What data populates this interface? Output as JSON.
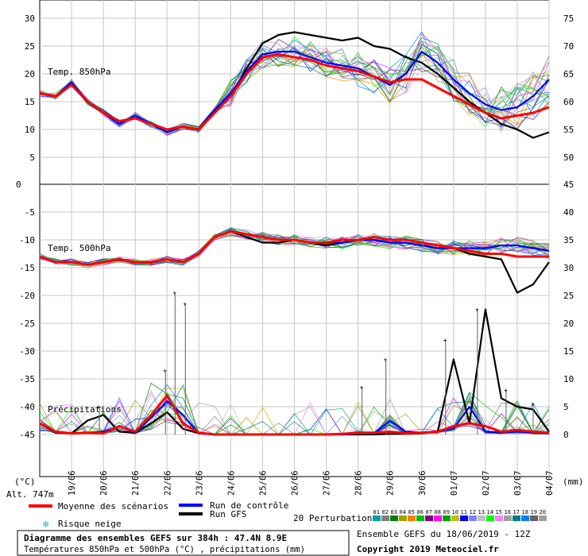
{
  "chart_data": {
    "type": "line",
    "title": "Diagramme des ensembles GEFS sur 384h : 47.4N 8.9E",
    "subtitle": "Températures 850hPa et 500hPa (°C) , précipitations (mm)",
    "run_info": "Ensemble GEFS du 18/06/2019 - 12Z",
    "copyright": "Copyright 2019 Meteociel.fr",
    "altitude": "Alt. 747m",
    "y_left_unit": "(°C)",
    "y_right_unit": "(mm)",
    "panel_labels": {
      "t850": "Temp. 850hPa",
      "t500": "Temp. 500hPa",
      "precip": "Précipitations"
    },
    "x_labels": [
      "19/06",
      "20/06",
      "21/06",
      "22/06",
      "23/06",
      "24/06",
      "25/06",
      "26/06",
      "27/06",
      "28/06",
      "29/06",
      "30/06",
      "01/07",
      "02/07",
      "03/07",
      "04/07"
    ],
    "x_range": [
      0,
      64
    ],
    "x_label_positions": [
      4,
      8,
      12,
      16,
      20,
      24,
      28,
      32,
      36,
      40,
      44,
      48,
      52,
      56,
      60,
      64
    ],
    "panel_top": {
      "left_ticks": [
        30,
        25,
        20,
        15,
        10,
        5
      ],
      "right_ticks": [
        75,
        70,
        65,
        60,
        55,
        50
      ],
      "ylim": [
        0,
        32.5
      ],
      "left_zero": "0",
      "right_zero": "45"
    },
    "panel_bottom": {
      "left_ticks": [
        -5,
        -10,
        -15,
        -20,
        -25,
        -30,
        -35,
        -40,
        -45
      ],
      "right_ticks": [
        40,
        35,
        30,
        25,
        20,
        15,
        10,
        5,
        0
      ],
      "ylim": [
        -53,
        -3
      ]
    },
    "legend": {
      "mean": "Moyenne des scénarios",
      "control": "Run de contrôle",
      "gfs": "Run GFS",
      "snow": "Risque neige",
      "perturbations": "20 Perturbations",
      "member_numbers": [
        "01",
        "02",
        "03",
        "04",
        "05",
        "06",
        "07",
        "08",
        "09",
        "10",
        "11",
        "12",
        "13",
        "14",
        "15",
        "16",
        "17",
        "18",
        "19",
        "20"
      ],
      "member_colors": [
        "#00a0a0",
        "#808080",
        "#008000",
        "#a0a000",
        "#ff8000",
        "#00c000",
        "#800080",
        "#ff00ff",
        "#00a000",
        "#c0c000",
        "#0000ff",
        "#8080ff",
        "#c0c0c0",
        "#00ff00",
        "#ff80ff",
        "#a0a0a0",
        "#008080",
        "#0080ff",
        "#606060",
        "#a0a0a0"
      ],
      "mean_color": "#ff0000",
      "control_color": "#0000ff",
      "gfs_color": "#000000",
      "snow_color": "#2aa0e0"
    },
    "series": [
      {
        "name": "Moyenne des scénarios",
        "panel": "t850",
        "x": [
          0,
          2,
          4,
          6,
          8,
          10,
          12,
          14,
          16,
          18,
          20,
          22,
          24,
          26,
          28,
          30,
          32,
          34,
          36,
          38,
          40,
          42,
          44,
          46,
          48,
          50,
          52,
          54,
          56,
          58,
          60,
          62,
          64
        ],
        "values": [
          16.5,
          16,
          18,
          15,
          13,
          11.5,
          12,
          11,
          10,
          10.5,
          10,
          13,
          16,
          20,
          23,
          23.5,
          23,
          22.5,
          21.5,
          21,
          20.5,
          19.5,
          18.5,
          19,
          19,
          17.5,
          16,
          14.5,
          13,
          12,
          12.5,
          13,
          14
        ]
      },
      {
        "name": "Run de contrôle",
        "panel": "t850",
        "x": [
          0,
          2,
          4,
          6,
          8,
          10,
          12,
          14,
          16,
          18,
          20,
          22,
          24,
          26,
          28,
          30,
          32,
          34,
          36,
          38,
          40,
          42,
          44,
          46,
          48,
          50,
          52,
          54,
          56,
          58,
          60,
          62,
          64
        ],
        "values": [
          16.5,
          16,
          18.5,
          15,
          13,
          11,
          12.5,
          11,
          9.5,
          10.5,
          10,
          13.5,
          16.5,
          20.5,
          23.5,
          24,
          24,
          23,
          22,
          21.5,
          21,
          19.5,
          18,
          20,
          24,
          22,
          19,
          16.5,
          14.5,
          13.5,
          14,
          16,
          19
        ]
      },
      {
        "name": "Run GFS",
        "panel": "t850",
        "x": [
          0,
          2,
          4,
          6,
          8,
          10,
          12,
          14,
          16,
          18,
          20,
          22,
          24,
          26,
          28,
          30,
          32,
          34,
          36,
          38,
          40,
          42,
          44,
          46,
          48,
          50,
          52,
          54,
          56,
          58,
          60,
          62,
          64
        ],
        "values": [
          16.5,
          16,
          18,
          15,
          13,
          11.5,
          12,
          11,
          10,
          10.5,
          10,
          13,
          16,
          21,
          25.5,
          27,
          27.5,
          27,
          26.5,
          26,
          26.5,
          25,
          24.5,
          23,
          22,
          20,
          17.5,
          15,
          13,
          11,
          10,
          8.5,
          9.5
        ]
      },
      {
        "name": "Moyenne des scénarios",
        "panel": "t500",
        "x": [
          0,
          2,
          4,
          6,
          8,
          10,
          12,
          14,
          16,
          18,
          20,
          22,
          24,
          26,
          28,
          30,
          32,
          34,
          36,
          38,
          40,
          42,
          44,
          46,
          48,
          50,
          52,
          54,
          56,
          58,
          60,
          62,
          64
        ],
        "values": [
          -13,
          -14,
          -14,
          -14.5,
          -14,
          -13.5,
          -14,
          -14,
          -13.5,
          -14,
          -12.5,
          -9.5,
          -8.5,
          -9,
          -9.5,
          -10,
          -10,
          -10.5,
          -10.5,
          -10,
          -10,
          -9.5,
          -10,
          -10,
          -10.5,
          -11,
          -11.5,
          -12,
          -12.5,
          -12.5,
          -13,
          -13,
          -13
        ]
      },
      {
        "name": "Run de contrôle",
        "panel": "t500",
        "x": [
          0,
          2,
          4,
          6,
          8,
          10,
          12,
          14,
          16,
          18,
          20,
          22,
          24,
          26,
          28,
          30,
          32,
          34,
          36,
          38,
          40,
          42,
          44,
          46,
          48,
          50,
          52,
          54,
          56,
          58,
          60,
          62,
          64
        ],
        "values": [
          -13,
          -14,
          -14,
          -14.5,
          -14,
          -13.5,
          -14,
          -14,
          -13.5,
          -14,
          -12.5,
          -9.5,
          -8.5,
          -9,
          -9.5,
          -10,
          -10,
          -10.5,
          -10.5,
          -10.5,
          -10,
          -10,
          -10.5,
          -10.5,
          -11,
          -11.5,
          -11.5,
          -11.5,
          -11.5,
          -11,
          -11,
          -11.5,
          -12
        ]
      },
      {
        "name": "Run GFS",
        "panel": "t500",
        "x": [
          0,
          2,
          4,
          6,
          8,
          10,
          12,
          14,
          16,
          18,
          20,
          22,
          24,
          26,
          28,
          30,
          32,
          34,
          36,
          38,
          40,
          42,
          44,
          46,
          48,
          50,
          52,
          54,
          56,
          58,
          60,
          62,
          64
        ],
        "values": [
          -13,
          -14,
          -14,
          -14.5,
          -14,
          -13.5,
          -14,
          -14,
          -13.5,
          -14,
          -12.5,
          -9.5,
          -8.5,
          -9.5,
          -10.5,
          -10.5,
          -10,
          -10.5,
          -11,
          -10.5,
          -10,
          -10,
          -10.5,
          -10.5,
          -11,
          -11.5,
          -11.5,
          -12.5,
          -13,
          -13.5,
          -19.5,
          -18,
          -14
        ]
      },
      {
        "name": "Moyenne des scénarios",
        "panel": "precip",
        "x": [
          0,
          2,
          4,
          6,
          8,
          10,
          12,
          14,
          16,
          18,
          20,
          22,
          24,
          26,
          28,
          30,
          32,
          34,
          36,
          38,
          40,
          42,
          44,
          46,
          48,
          50,
          52,
          54,
          56,
          58,
          60,
          62,
          64
        ],
        "values": [
          2,
          0.5,
          0.2,
          0.3,
          0.2,
          1.5,
          0.5,
          3.5,
          7,
          2,
          0.3,
          0,
          0,
          0,
          0,
          0,
          0,
          0,
          0,
          0.1,
          0.3,
          0.3,
          0.5,
          0.2,
          0.3,
          0.5,
          1.5,
          2,
          1.5,
          0.5,
          0.8,
          0.5,
          0.3
        ]
      },
      {
        "name": "Run de contrôle",
        "panel": "precip",
        "x": [
          0,
          2,
          4,
          6,
          8,
          10,
          12,
          14,
          16,
          18,
          20,
          22,
          24,
          26,
          28,
          30,
          32,
          34,
          36,
          38,
          40,
          42,
          44,
          46,
          48,
          50,
          52,
          54,
          56,
          58,
          60,
          62,
          64
        ],
        "values": [
          2,
          0.5,
          0.2,
          0.3,
          0.5,
          1.5,
          0.3,
          3,
          6,
          3.5,
          0.2,
          0,
          0,
          0,
          0,
          0,
          0,
          0,
          0,
          0,
          0.2,
          0.2,
          2.5,
          0.5,
          0.3,
          0.5,
          1,
          5,
          0.5,
          0.3,
          0.5,
          0.3,
          0.2
        ]
      },
      {
        "name": "Run GFS",
        "panel": "precip",
        "x": [
          0,
          2,
          4,
          6,
          8,
          10,
          12,
          14,
          16,
          18,
          20,
          22,
          24,
          26,
          28,
          30,
          32,
          34,
          36,
          38,
          40,
          42,
          44,
          46,
          48,
          50,
          52,
          54,
          56,
          58,
          60,
          62,
          64
        ],
        "values": [
          2,
          0.3,
          0.2,
          2.5,
          3.5,
          0.5,
          0.3,
          2,
          4,
          1,
          0.2,
          0,
          0,
          0,
          0,
          0,
          0,
          0,
          0,
          0,
          0,
          0,
          0.1,
          0.1,
          0.2,
          0.5,
          13.5,
          2,
          22.5,
          6.5,
          5,
          4.5,
          0.5
        ]
      }
    ],
    "peak_markers": {
      "panel": "precip",
      "x": [
        7.5,
        15.8,
        17,
        18.3,
        40.5,
        43.5,
        51,
        55,
        58.6,
        62
      ],
      "values": [
        5,
        11.5,
        25.5,
        23.5,
        8.5,
        13.5,
        17,
        22.5,
        8,
        5.5
      ]
    }
  }
}
